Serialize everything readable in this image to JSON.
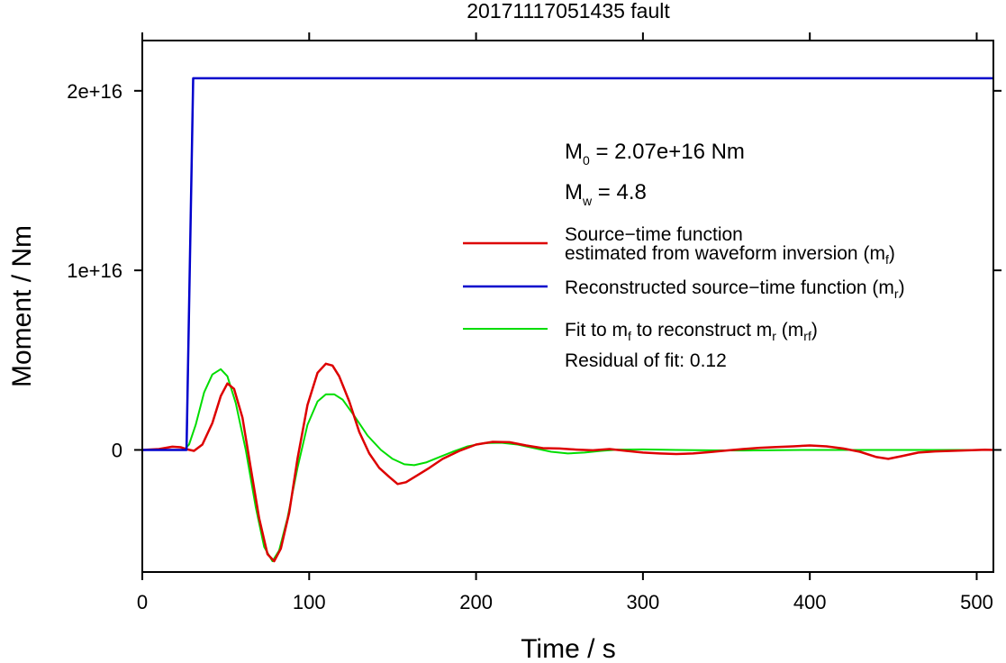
{
  "chart_data": {
    "type": "line",
    "title": "20171117051435 fault",
    "xlabel": "Time / s",
    "ylabel": "Moment / Nm",
    "xlim": [
      0,
      510
    ],
    "ylim": [
      -6800000000000000.0,
      2.28e+16
    ],
    "x_ticks": [
      0,
      100,
      200,
      300,
      400,
      500
    ],
    "x_tick_labels": [
      "0",
      "100",
      "200",
      "300",
      "400",
      "500"
    ],
    "y_ticks": [
      0,
      1e+16,
      2e+16
    ],
    "y_tick_labels": [
      "0",
      "1e+16",
      "2e+16"
    ],
    "grid": false,
    "legend_position": "right",
    "annotations": {
      "m0": {
        "main": "M",
        "sub": "0",
        "rest": " = 2.07e+16 Nm"
      },
      "mw": {
        "main": "M",
        "sub": "w",
        "rest": " = 4.8"
      },
      "residual": "Residual of fit: 0.12"
    },
    "series": [
      {
        "name": "Source−time function estimated from waveform inversion (mf)",
        "legend_lines": [
          {
            "text": "Source−time function"
          },
          {
            "text": "estimated from waveform inversion (m",
            "sub": "f",
            "tail": ")"
          }
        ],
        "color": "#dd0000",
        "x": [
          0,
          10,
          18,
          23,
          27,
          31,
          36,
          42,
          47,
          51,
          55,
          60,
          65,
          70,
          75,
          79,
          83,
          88,
          93,
          99,
          105,
          110,
          114,
          118,
          124,
          130,
          136,
          142,
          148,
          153,
          158,
          165,
          172,
          180,
          190,
          200,
          210,
          220,
          230,
          240,
          250,
          260,
          270,
          280,
          290,
          300,
          310,
          320,
          330,
          340,
          350,
          360,
          370,
          380,
          390,
          400,
          410,
          420,
          430,
          440,
          447,
          455,
          465,
          475,
          485,
          495,
          505,
          510
        ],
        "y": [
          0,
          50000000000000.0,
          180000000000000.0,
          150000000000000.0,
          30000000000000.0,
          -50000000000000.0,
          300000000000000.0,
          1500000000000000.0,
          3000000000000000.0,
          3700000000000000.0,
          3400000000000000.0,
          1800000000000000.0,
          -1000000000000000.0,
          -3800000000000000.0,
          -5800000000000000.0,
          -6200000000000000.0,
          -5500000000000000.0,
          -3500000000000000.0,
          -500000000000000.0,
          2500000000000000.0,
          4300000000000000.0,
          4800000000000000.0,
          4700000000000000.0,
          4100000000000000.0,
          2700000000000000.0,
          1000000000000000.0,
          -200000000000000.0,
          -1000000000000000.0,
          -1500000000000000.0,
          -1900000000000000.0,
          -1800000000000000.0,
          -1400000000000000.0,
          -1000000000000000.0,
          -500000000000000.0,
          -50000000000000.0,
          300000000000000.0,
          450000000000000.0,
          430000000000000.0,
          250000000000000.0,
          100000000000000.0,
          80000000000000.0,
          20000000000000.0,
          -20000000000000.0,
          50000000000000.0,
          -50000000000000.0,
          -150000000000000.0,
          -200000000000000.0,
          -230000000000000.0,
          -200000000000000.0,
          -120000000000000.0,
          -30000000000000.0,
          50000000000000.0,
          120000000000000.0,
          160000000000000.0,
          200000000000000.0,
          250000000000000.0,
          200000000000000.0,
          80000000000000.0,
          -100000000000000.0,
          -400000000000000.0,
          -500000000000000.0,
          -350000000000000.0,
          -150000000000000.0,
          -80000000000000.0,
          -50000000000000.0,
          -20000000000000.0,
          10000000000000.0,
          0
        ]
      },
      {
        "name": "Reconstructed source−time function (mr)",
        "legend_lines": [
          {
            "text": "Reconstructed source−time function (m",
            "sub": "r",
            "tail": ")"
          }
        ],
        "color": "#0000cc",
        "x": [
          0,
          26.5,
          30.5,
          510
        ],
        "y": [
          0,
          0,
          2.07e+16,
          2.07e+16
        ]
      },
      {
        "name": "Fit to mf to reconstruct mr (mrf)",
        "legend_lines": [
          {
            "text": "Fit to m",
            "sub": "f",
            "tail": " to reconstruct m",
            "sub2": "r",
            "tail2": " (m",
            "sub3": "rf",
            "tail3": ")"
          }
        ],
        "color": "#00dd00",
        "x": [
          0,
          25,
          28,
          32,
          37,
          42,
          47,
          51,
          56,
          62,
          68,
          73,
          78,
          82,
          87,
          93,
          99,
          105,
          110,
          115,
          120,
          127,
          135,
          143,
          150,
          157,
          163,
          170,
          178,
          186,
          195,
          205,
          215,
          225,
          235,
          245,
          255,
          265,
          275,
          285,
          300,
          320,
          340,
          360,
          380,
          400,
          420,
          440,
          460,
          480,
          500,
          510
        ],
        "y": [
          0,
          0,
          300000000000000.0,
          1400000000000000.0,
          3200000000000000.0,
          4200000000000000.0,
          4500000000000000.0,
          4100000000000000.0,
          2600000000000000.0,
          0,
          -3200000000000000.0,
          -5400000000000000.0,
          -6200000000000000.0,
          -5600000000000000.0,
          -3800000000000000.0,
          -1000000000000000.0,
          1400000000000000.0,
          2700000000000000.0,
          3100000000000000.0,
          3100000000000000.0,
          2800000000000000.0,
          1900000000000000.0,
          800000000000000.0,
          0,
          -500000000000000.0,
          -800000000000000.0,
          -850000000000000.0,
          -700000000000000.0,
          -400000000000000.0,
          -100000000000000.0,
          200000000000000.0,
          380000000000000.0,
          400000000000000.0,
          300000000000000.0,
          100000000000000.0,
          -100000000000000.0,
          -200000000000000.0,
          -150000000000000.0,
          -50000000000000.0,
          20000000000000.0,
          30000000000000.0,
          0,
          -20000000000000.0,
          -30000000000000.0,
          -10000000000000.0,
          0,
          0,
          0,
          0,
          0,
          0,
          0
        ]
      }
    ]
  }
}
